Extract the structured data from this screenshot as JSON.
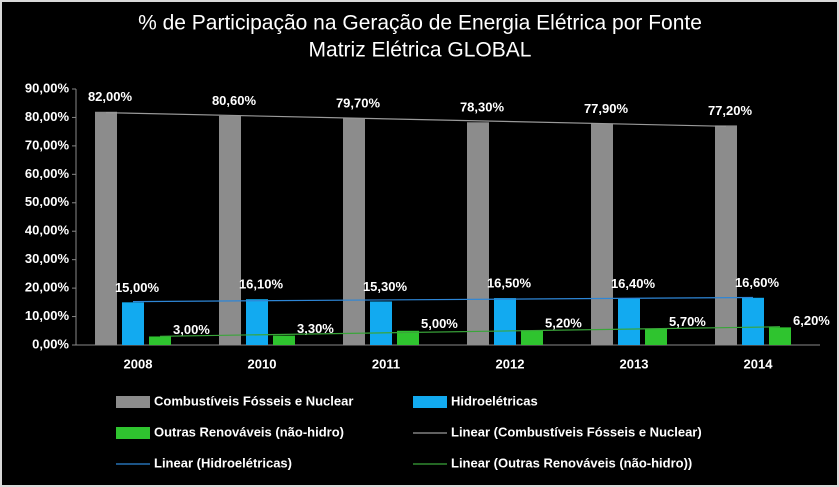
{
  "chart_data": {
    "type": "bar",
    "title": [
      "% de Participação na Geração de Energia Elétrica por Fonte",
      "Matriz Elétrica GLOBAL"
    ],
    "categories": [
      "2008",
      "2010",
      "2011",
      "2012",
      "2013",
      "2014"
    ],
    "series": [
      {
        "name": "Combustíveis Fósseis e Nuclear",
        "color": "#8c8c8c",
        "values": [
          82.0,
          80.6,
          79.7,
          78.3,
          77.9,
          77.2
        ],
        "value_labels": [
          "82,00%",
          "80,60%",
          "79,70%",
          "78,30%",
          "77,90%",
          "77,20%"
        ],
        "trendline_name": "Linear (Combustíveis Fósseis e Nuclear)",
        "trendline_color": "#9a9a9a"
      },
      {
        "name": "Hidroelétricas",
        "color": "#12aaf0",
        "values": [
          15.0,
          16.1,
          15.3,
          16.5,
          16.4,
          16.6
        ],
        "value_labels": [
          "15,00%",
          "16,10%",
          "15,30%",
          "16,50%",
          "16,40%",
          "16,60%"
        ],
        "trendline_name": "Linear (Hidroelétricas)",
        "trendline_color": "#2e86d6"
      },
      {
        "name": "Outras Renováveis (não-hidro)",
        "color": "#2fc42f",
        "values": [
          3.0,
          3.3,
          5.0,
          5.2,
          5.7,
          6.2
        ],
        "value_labels": [
          "3,00%",
          "3,30%",
          "5,00%",
          "5,20%",
          "5,70%",
          "6,20%"
        ],
        "trendline_name": "Linear (Outras Renováveis (não-hidro))",
        "trendline_color": "#3aa53a"
      }
    ],
    "ylim": [
      0,
      90
    ],
    "yticks": [
      {
        "value": 0,
        "label": "0,00%"
      },
      {
        "value": 10,
        "label": "10,00%"
      },
      {
        "value": 20,
        "label": "20,00%"
      },
      {
        "value": 30,
        "label": "30,00%"
      },
      {
        "value": 40,
        "label": "40,00%"
      },
      {
        "value": 50,
        "label": "50,00%"
      },
      {
        "value": 60,
        "label": "60,00%"
      },
      {
        "value": 70,
        "label": "70,00%"
      },
      {
        "value": 80,
        "label": "80,00%"
      },
      {
        "value": 90,
        "label": "90,00%"
      }
    ],
    "grid": false
  }
}
